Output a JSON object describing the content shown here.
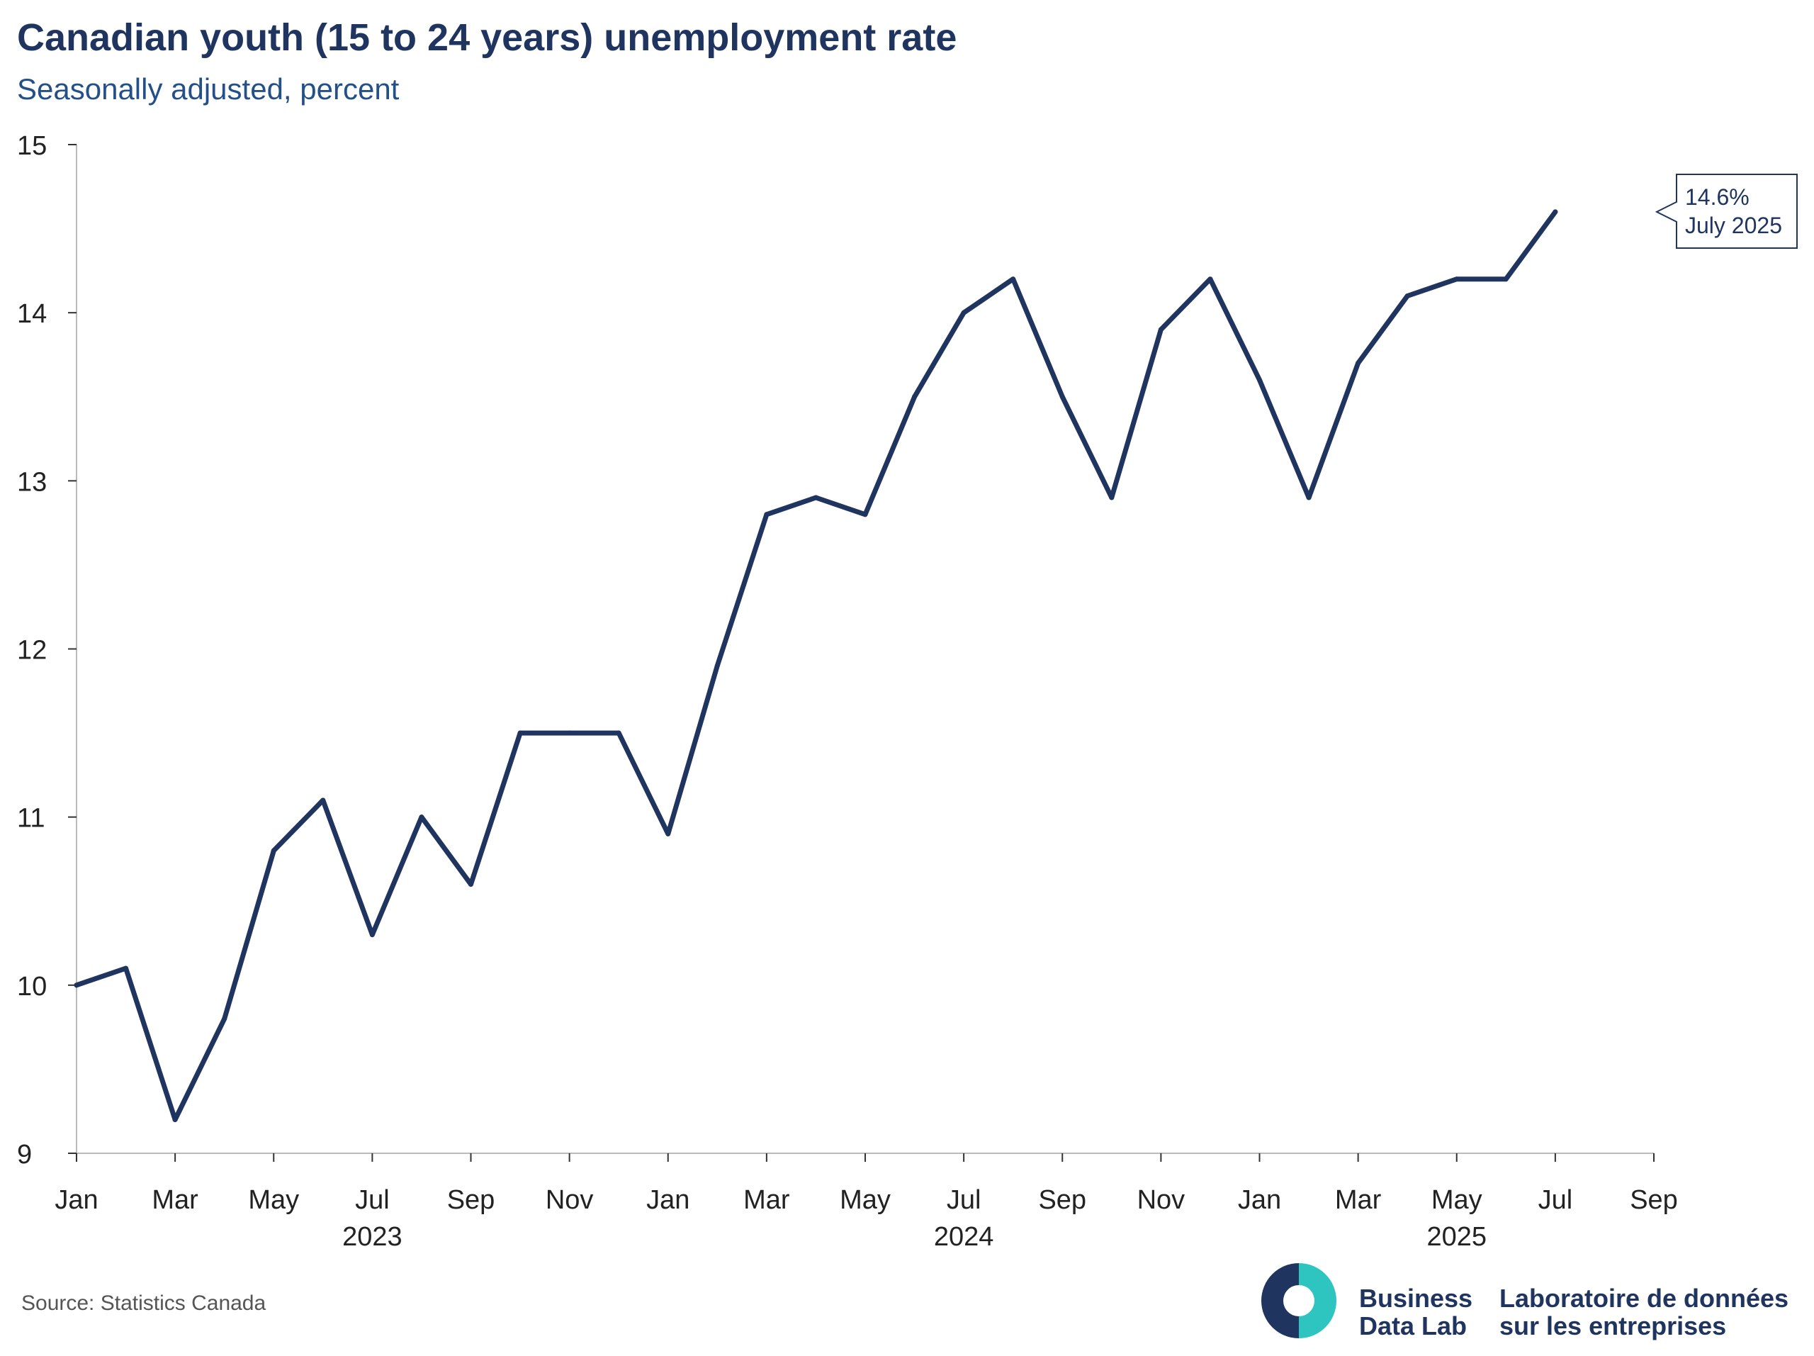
{
  "header": {
    "title": "Canadian youth (15 to 24 years) unemployment rate",
    "subtitle": "Seasonally adjusted, percent"
  },
  "footer": {
    "source": "Source: Statistics Canada",
    "logo_en_line1": "Business",
    "logo_en_line2": "Data Lab",
    "logo_fr_line1": "Laboratoire de données",
    "logo_fr_line2": "sur les entreprises"
  },
  "colors": {
    "line": "#1f3560",
    "logo_dark": "#1f3560",
    "logo_teal": "#2ec4c0",
    "axis": "#bbbbbb"
  },
  "chart_data": {
    "type": "line",
    "title": "Canadian youth (15 to 24 years) unemployment rate",
    "subtitle": "Seasonally adjusted, percent",
    "xlabel": "",
    "ylabel": "",
    "ylim": [
      9,
      15
    ],
    "yticks": [
      "9",
      "10",
      "11",
      "12",
      "13",
      "14",
      "15"
    ],
    "xlim": [
      "2023-01",
      "2025-09"
    ],
    "xticks": [
      "2023-01",
      "2023-03",
      "2023-05",
      "2023-07",
      "2023-09",
      "2023-11",
      "2024-01",
      "2024-03",
      "2024-05",
      "2024-07",
      "2024-09",
      "2024-11",
      "2025-01",
      "2025-03",
      "2025-05",
      "2025-07",
      "2025-09"
    ],
    "xtick_labels": [
      "Jan",
      "Mar",
      "May",
      "Jul",
      "Sep",
      "Nov",
      "Jan",
      "Mar",
      "May",
      "Jul",
      "Sep",
      "Nov",
      "Jan",
      "Mar",
      "May",
      "Jul",
      "Sep"
    ],
    "year_labels": [
      {
        "label": "2023",
        "at": "2023-07"
      },
      {
        "label": "2024",
        "at": "2024-07"
      },
      {
        "label": "2025",
        "at": "2025-05"
      }
    ],
    "grid": false,
    "legend": "none",
    "series": [
      {
        "x": [
          "2023-01",
          "2023-02",
          "2023-03",
          "2023-04",
          "2023-05",
          "2023-06",
          "2023-07",
          "2023-08",
          "2023-09",
          "2023-10",
          "2023-11",
          "2023-12",
          "2024-01",
          "2024-02",
          "2024-03",
          "2024-04",
          "2024-05",
          "2024-06",
          "2024-07",
          "2024-08",
          "2024-09",
          "2024-10",
          "2024-11",
          "2024-12",
          "2025-01",
          "2025-02",
          "2025-03",
          "2025-04",
          "2025-05",
          "2025-06",
          "2025-07"
        ],
        "values": [
          10.0,
          10.1,
          9.2,
          9.8,
          10.8,
          11.1,
          10.3,
          11.0,
          10.6,
          11.5,
          11.5,
          11.5,
          10.9,
          11.9,
          12.8,
          12.9,
          12.8,
          13.5,
          14.0,
          14.2,
          13.5,
          12.9,
          13.9,
          14.2,
          13.6,
          12.9,
          13.7,
          14.1,
          14.2,
          14.2,
          14.6
        ]
      }
    ],
    "annotation": {
      "x": "2025-07",
      "value": 14.6,
      "line1": "14.6%",
      "line2": "July 2025"
    }
  }
}
